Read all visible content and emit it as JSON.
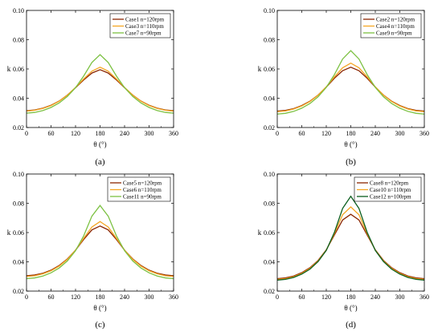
{
  "chart_data": [
    {
      "type": "line",
      "panel_label": "(a)",
      "xlabel": "θ (°)",
      "ylabel": "k",
      "xlim": [
        0,
        360
      ],
      "ylim": [
        0.02,
        0.1
      ],
      "xticks": [
        "0",
        "60",
        "120",
        "180",
        "240",
        "300",
        "360"
      ],
      "yticks": [
        "0.02",
        "0.04",
        "0.06",
        "0.08",
        "0.10"
      ],
      "legend_position": "top-right",
      "grid": false,
      "x": [
        0,
        20,
        40,
        60,
        80,
        100,
        120,
        140,
        160,
        180,
        200,
        220,
        240,
        260,
        280,
        300,
        320,
        340,
        360
      ],
      "series": [
        {
          "name": "Case1 n=120rpm",
          "color": "#8B2500",
          "values": [
            0.0315,
            0.032,
            0.0332,
            0.0352,
            0.0381,
            0.0422,
            0.0472,
            0.0525,
            0.0572,
            0.0595,
            0.0572,
            0.0525,
            0.0472,
            0.0422,
            0.0381,
            0.0352,
            0.0332,
            0.032,
            0.0315
          ]
        },
        {
          "name": "Case3 n=110rpm",
          "color": "#F5A623",
          "values": [
            0.0312,
            0.0318,
            0.033,
            0.035,
            0.038,
            0.0421,
            0.0474,
            0.0532,
            0.0585,
            0.0612,
            0.0585,
            0.0532,
            0.0474,
            0.0421,
            0.038,
            0.035,
            0.033,
            0.0318,
            0.0312
          ]
        },
        {
          "name": "Case7 n=90rpm",
          "color": "#7CC142",
          "values": [
            0.0298,
            0.0303,
            0.0316,
            0.0337,
            0.0368,
            0.0412,
            0.0472,
            0.0552,
            0.0644,
            0.0698,
            0.0644,
            0.0552,
            0.0472,
            0.0412,
            0.0368,
            0.0337,
            0.0316,
            0.0303,
            0.0298
          ]
        }
      ]
    },
    {
      "type": "line",
      "panel_label": "(b)",
      "xlabel": "θ (°)",
      "ylabel": "k",
      "xlim": [
        0,
        360
      ],
      "ylim": [
        0.02,
        0.1
      ],
      "xticks": [
        "0",
        "60",
        "120",
        "180",
        "240",
        "300",
        "360"
      ],
      "yticks": [
        "0.02",
        "0.04",
        "0.06",
        "0.08",
        "0.10"
      ],
      "legend_position": "top-right",
      "grid": false,
      "x": [
        0,
        20,
        40,
        60,
        80,
        100,
        120,
        140,
        160,
        180,
        200,
        220,
        240,
        260,
        280,
        300,
        320,
        340,
        360
      ],
      "series": [
        {
          "name": "Case2 n=120rpm",
          "color": "#8B2500",
          "values": [
            0.0312,
            0.0317,
            0.0329,
            0.035,
            0.038,
            0.0422,
            0.0476,
            0.0537,
            0.0588,
            0.0612,
            0.0588,
            0.0537,
            0.0476,
            0.0422,
            0.038,
            0.035,
            0.0329,
            0.0317,
            0.0312
          ]
        },
        {
          "name": "Case4 n=110rpm",
          "color": "#F5A623",
          "values": [
            0.0308,
            0.0313,
            0.0326,
            0.0347,
            0.0378,
            0.0421,
            0.0478,
            0.0546,
            0.0608,
            0.064,
            0.0608,
            0.0546,
            0.0478,
            0.0421,
            0.0378,
            0.0347,
            0.0326,
            0.0313,
            0.0308
          ]
        },
        {
          "name": "Case9 n=90rpm",
          "color": "#7CC142",
          "values": [
            0.0292,
            0.0297,
            0.031,
            0.0332,
            0.0364,
            0.041,
            0.0474,
            0.0562,
            0.0668,
            0.0725,
            0.0668,
            0.0562,
            0.0474,
            0.041,
            0.0364,
            0.0332,
            0.031,
            0.0297,
            0.0292
          ]
        }
      ]
    },
    {
      "type": "line",
      "panel_label": "(c)",
      "xlabel": "θ (°)",
      "ylabel": "k",
      "xlim": [
        0,
        360
      ],
      "ylim": [
        0.02,
        0.1
      ],
      "xticks": [
        "0",
        "60",
        "120",
        "180",
        "240",
        "300",
        "360"
      ],
      "yticks": [
        "0.02",
        "0.04",
        "0.06",
        "0.08",
        "0.10"
      ],
      "legend_position": "top-right",
      "grid": false,
      "x": [
        0,
        20,
        40,
        60,
        80,
        100,
        120,
        140,
        160,
        180,
        200,
        220,
        240,
        260,
        280,
        300,
        320,
        340,
        360
      ],
      "series": [
        {
          "name": "Case5 n=120rpm",
          "color": "#8B2500",
          "values": [
            0.0305,
            0.031,
            0.0322,
            0.0343,
            0.0375,
            0.042,
            0.048,
            0.0553,
            0.0618,
            0.0645,
            0.0618,
            0.0553,
            0.048,
            0.042,
            0.0375,
            0.0343,
            0.0322,
            0.031,
            0.0305
          ]
        },
        {
          "name": "Case6 n=110rpm",
          "color": "#F5A623",
          "values": [
            0.03,
            0.0305,
            0.0318,
            0.0339,
            0.0371,
            0.0417,
            0.048,
            0.0561,
            0.0638,
            0.0675,
            0.0638,
            0.0561,
            0.048,
            0.0417,
            0.0371,
            0.0339,
            0.0318,
            0.0305,
            0.03
          ]
        },
        {
          "name": "Case11 n=90rpm",
          "color": "#7CC142",
          "values": [
            0.0285,
            0.029,
            0.0303,
            0.0325,
            0.0358,
            0.0406,
            0.0476,
            0.0578,
            0.0712,
            0.0785,
            0.0712,
            0.0578,
            0.0476,
            0.0406,
            0.0358,
            0.0325,
            0.0303,
            0.029,
            0.0285
          ]
        }
      ]
    },
    {
      "type": "line",
      "panel_label": "(d)",
      "xlabel": "θ (°)",
      "ylabel": "k",
      "xlim": [
        0,
        360
      ],
      "ylim": [
        0.02,
        0.1
      ],
      "xticks": [
        "0",
        "60",
        "120",
        "180",
        "240",
        "300",
        "360"
      ],
      "yticks": [
        "0.02",
        "0.04",
        "0.06",
        "0.08",
        "0.10"
      ],
      "legend_position": "top-right",
      "grid": false,
      "x": [
        0,
        20,
        40,
        60,
        80,
        100,
        120,
        140,
        160,
        180,
        200,
        220,
        240,
        260,
        280,
        300,
        320,
        340,
        360
      ],
      "series": [
        {
          "name": "Case8 n=120rpm",
          "color": "#8B2500",
          "values": [
            0.0285,
            0.029,
            0.0303,
            0.0326,
            0.036,
            0.041,
            0.0482,
            0.0584,
            0.0686,
            0.0725,
            0.0686,
            0.0584,
            0.0482,
            0.041,
            0.036,
            0.0326,
            0.0303,
            0.029,
            0.0285
          ]
        },
        {
          "name": "Case10 n=110rpm",
          "color": "#F5A623",
          "values": [
            0.028,
            0.0285,
            0.0298,
            0.0321,
            0.0355,
            0.0406,
            0.048,
            0.0594,
            0.0722,
            0.0775,
            0.0722,
            0.0594,
            0.048,
            0.0406,
            0.0355,
            0.0321,
            0.0298,
            0.0285,
            0.028
          ]
        },
        {
          "name": "Case12 n=100rpm",
          "color": "#0B5E1E",
          "values": [
            0.0275,
            0.028,
            0.0293,
            0.0316,
            0.035,
            0.0402,
            0.0478,
            0.0602,
            0.0765,
            0.0848,
            0.0765,
            0.0602,
            0.0478,
            0.0402,
            0.035,
            0.0316,
            0.0293,
            0.028,
            0.0275
          ]
        }
      ]
    }
  ]
}
